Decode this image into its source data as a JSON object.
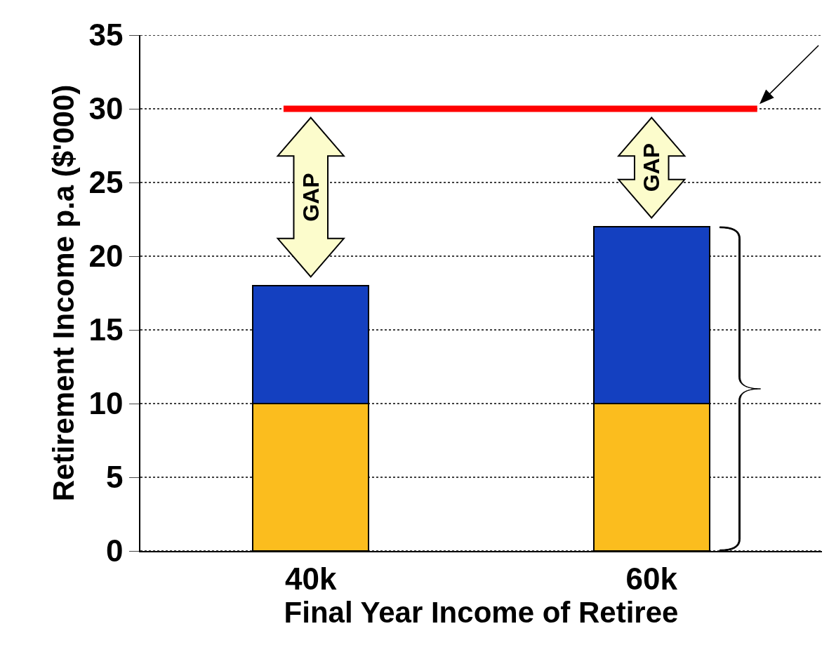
{
  "chart_data": {
    "type": "bar",
    "stacked": true,
    "xlabel": "Final Year Income of Retiree",
    "ylabel": "Retirement Income p.a ($'000)",
    "categories": [
      "40k",
      "60k"
    ],
    "series": [
      {
        "color": "#fbbd1e",
        "values": [
          10,
          10
        ]
      },
      {
        "color": "#1440c0",
        "values": [
          8,
          12
        ]
      }
    ],
    "ylim": [
      0,
      35
    ],
    "yticks": [
      0,
      5,
      10,
      15,
      20,
      25,
      30,
      35
    ],
    "grid": "y",
    "ref_lines": [
      {
        "axis": "y",
        "value": 30,
        "color": "#ff0000"
      }
    ],
    "annotations": [
      "GAP",
      "GAP"
    ]
  }
}
